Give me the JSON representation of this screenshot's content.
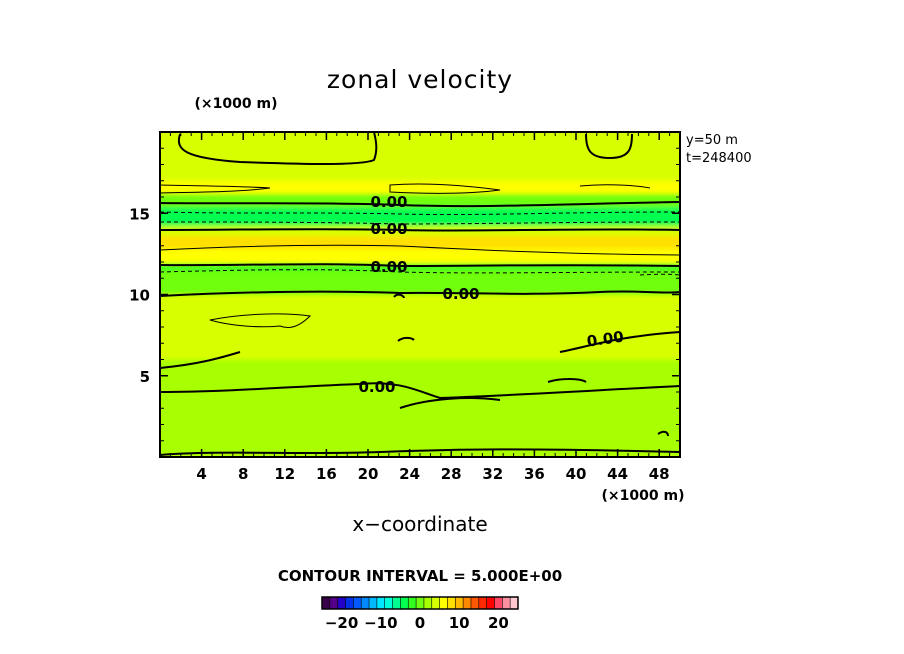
{
  "chart_data": {
    "type": "heatmap",
    "title": "zonal velocity",
    "xlabel": "x−coordinate",
    "x_unit": "(×1000 m)",
    "y_unit": "(×1000 m)",
    "xlim": [
      0,
      50
    ],
    "ylim": [
      0,
      20
    ],
    "x_ticks": [
      "4",
      "8",
      "12",
      "16",
      "20",
      "24",
      "28",
      "32",
      "36",
      "40",
      "44",
      "48"
    ],
    "y_ticks": [
      "5",
      "10",
      "15"
    ],
    "annotations": [
      "y=50 m",
      "t=248400"
    ],
    "contour_interval_text": "CONTOUR INTERVAL = 5.000E+00",
    "contour_labels": [
      "0.00",
      "0.00",
      "0.00",
      "0.00",
      "0.00",
      "0.00"
    ],
    "colorbar": {
      "min": -25,
      "max": 25,
      "ticks": [
        "−20",
        "−10",
        "0",
        "10",
        "20"
      ],
      "tick_values": [
        -20,
        -10,
        0,
        10,
        20
      ],
      "colors": [
        "#3a004a",
        "#55008a",
        "#2200c8",
        "#0030e8",
        "#0058ff",
        "#0088ff",
        "#00b8ff",
        "#00e8ff",
        "#00ffd8",
        "#00ff90",
        "#00ff50",
        "#30ff20",
        "#70ff10",
        "#a8ff00",
        "#d8ff00",
        "#ffff00",
        "#ffe000",
        "#ffb800",
        "#ff8800",
        "#ff5800",
        "#ff2800",
        "#ff0000",
        "#ff4868",
        "#ff90a0",
        "#ffc8d0"
      ]
    },
    "field_bands": [
      {
        "y": [
          0,
          3
        ],
        "u": 1.5
      },
      {
        "y": [
          3,
          6
        ],
        "u": 2.5
      },
      {
        "y": [
          6,
          10
        ],
        "u": 3.5
      },
      {
        "y": [
          10,
          11.5
        ],
        "u": 0.5
      },
      {
        "y": [
          11.5,
          11.9
        ],
        "u": -2.5
      },
      {
        "y": [
          11.9,
          12.8
        ],
        "u": 5
      },
      {
        "y": [
          12.8,
          13.6
        ],
        "u": 7.5
      },
      {
        "y": [
          13.6,
          14.2
        ],
        "u": 3
      },
      {
        "y": [
          14.2,
          15.4
        ],
        "u": -3.5
      },
      {
        "y": [
          15.4,
          16.2
        ],
        "u": 0.5
      },
      {
        "y": [
          16.2,
          17
        ],
        "u": 5
      },
      {
        "y": [
          17,
          20
        ],
        "u": 3
      }
    ]
  }
}
